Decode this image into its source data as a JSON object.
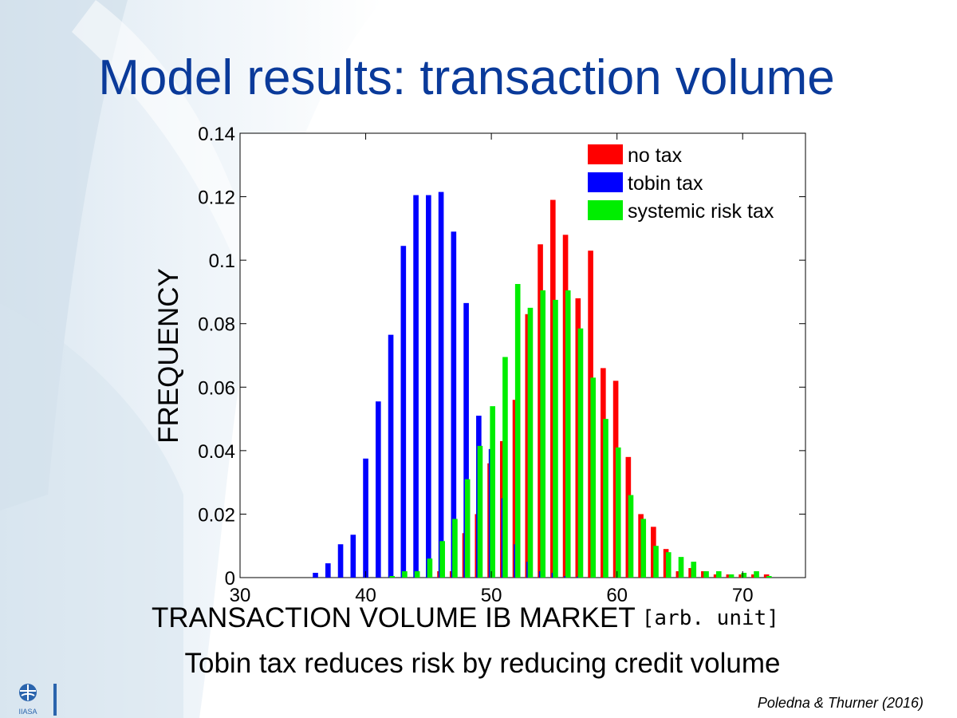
{
  "slide": {
    "title": "Model results: transaction volume",
    "caption": "Tobin tax reduces risk by reducing credit volume",
    "citation": "Poledna & Thurner (2016)",
    "logo_text": "IIASA"
  },
  "colors": {
    "title": "#0a3a9a",
    "no_tax": "#ff0000",
    "tobin_tax": "#0000ff",
    "systemic_risk_tax": "#00ee00"
  },
  "chart_data": {
    "type": "bar",
    "xlabel": "TRANSACTION VOLUME IB MARKET",
    "xlabel_unit": "[arb. unit]",
    "ylabel": "FREQUENCY",
    "xlim": [
      30,
      75
    ],
    "ylim": [
      0,
      0.14
    ],
    "xticks": [
      30,
      40,
      50,
      60,
      70
    ],
    "yticks": [
      0,
      0.02,
      0.04,
      0.06,
      0.08,
      0.1,
      0.12,
      0.14
    ],
    "ytick_labels": [
      "0",
      "0.02",
      "0.04",
      "0.06",
      "0.08",
      "0.1",
      "0.12",
      "0.14"
    ],
    "grid": false,
    "legend_position": "top-right",
    "bin_width": 1,
    "series": [
      {
        "name": "no tax",
        "color": "#ff0000",
        "x": [
          46,
          47,
          48,
          49,
          50,
          51,
          52,
          53,
          54,
          55,
          56,
          57,
          58,
          59,
          60,
          61,
          62,
          63,
          64,
          65,
          66,
          67,
          68,
          69,
          70,
          71,
          72
        ],
        "values": [
          0.002,
          0.002,
          0.014,
          0.02,
          0.036,
          0.043,
          0.056,
          0.083,
          0.105,
          0.119,
          0.108,
          0.088,
          0.103,
          0.066,
          0.062,
          0.038,
          0.02,
          0.016,
          0.009,
          0.002,
          0.003,
          0.002,
          0.001,
          0.001,
          0.001,
          0.001,
          0.001
        ]
      },
      {
        "name": "tobin tax",
        "color": "#0000ff",
        "x": [
          36,
          37,
          38,
          39,
          40,
          41,
          42,
          43,
          44,
          45,
          46,
          47,
          48,
          49,
          50,
          51,
          52,
          53,
          54,
          55,
          56,
          57
        ],
        "values": [
          0.0015,
          0.0045,
          0.0105,
          0.0135,
          0.0375,
          0.0555,
          0.0765,
          0.1045,
          0.1205,
          0.1205,
          0.1215,
          0.109,
          0.0865,
          0.051,
          0.0405,
          0.025,
          0.0105,
          0.005,
          0.002,
          0.0015,
          0.0005,
          0.0003
        ]
      },
      {
        "name": "systemic risk tax",
        "color": "#00ee00",
        "x": [
          42,
          43,
          44,
          45,
          46,
          47,
          48,
          49,
          50,
          51,
          52,
          53,
          54,
          55,
          56,
          57,
          58,
          59,
          60,
          61,
          62,
          63,
          64,
          65,
          66,
          67,
          68,
          69,
          70,
          71,
          72
        ],
        "values": [
          0.0005,
          0.002,
          0.002,
          0.006,
          0.0115,
          0.0185,
          0.031,
          0.0415,
          0.054,
          0.0695,
          0.0925,
          0.085,
          0.0905,
          0.0875,
          0.0905,
          0.0785,
          0.063,
          0.05,
          0.041,
          0.026,
          0.0185,
          0.01,
          0.008,
          0.0065,
          0.005,
          0.002,
          0.002,
          0.001,
          0.0015,
          0.002,
          0.0005
        ]
      }
    ]
  }
}
